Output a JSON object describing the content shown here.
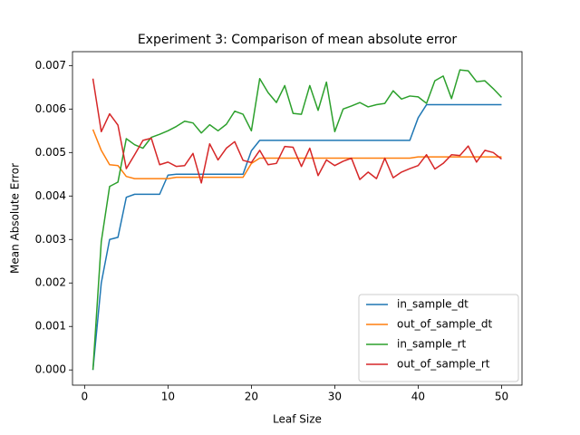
{
  "chart_data": {
    "type": "line",
    "title": "Experiment 3: Comparison of mean absolute error",
    "xlabel": "Leaf Size",
    "ylabel": "Mean Absolute Error",
    "x": [
      1,
      2,
      3,
      4,
      5,
      6,
      7,
      8,
      9,
      10,
      11,
      12,
      13,
      14,
      15,
      16,
      17,
      18,
      19,
      20,
      21,
      22,
      23,
      24,
      25,
      26,
      27,
      28,
      29,
      30,
      31,
      32,
      33,
      34,
      35,
      36,
      37,
      38,
      39,
      40,
      41,
      42,
      43,
      44,
      45,
      46,
      47,
      48,
      49,
      50
    ],
    "series": [
      {
        "name": "in_sample_dt",
        "color": "#1f77b4",
        "values": [
          0,
          0.002,
          0.003,
          0.00305,
          0.00397,
          0.00404,
          0.00404,
          0.00404,
          0.00404,
          0.00448,
          0.0045,
          0.0045,
          0.0045,
          0.0045,
          0.0045,
          0.0045,
          0.0045,
          0.0045,
          0.0045,
          0.00504,
          0.00528,
          0.00528,
          0.00528,
          0.00528,
          0.00528,
          0.00528,
          0.00528,
          0.00528,
          0.00528,
          0.00528,
          0.00528,
          0.00528,
          0.00528,
          0.00528,
          0.00528,
          0.00528,
          0.00528,
          0.00528,
          0.00528,
          0.0058,
          0.0061,
          0.0061,
          0.0061,
          0.0061,
          0.0061,
          0.0061,
          0.0061,
          0.0061,
          0.0061,
          0.0061
        ]
      },
      {
        "name": "out_of_sample_dt",
        "color": "#ff7f0e",
        "values": [
          0.00553,
          0.00505,
          0.00472,
          0.0047,
          0.00445,
          0.0044,
          0.0044,
          0.0044,
          0.0044,
          0.0044,
          0.00443,
          0.00443,
          0.00443,
          0.00443,
          0.00443,
          0.00443,
          0.00443,
          0.00443,
          0.00443,
          0.00475,
          0.00487,
          0.00487,
          0.00487,
          0.00487,
          0.00487,
          0.00487,
          0.00487,
          0.00487,
          0.00487,
          0.00487,
          0.00487,
          0.00487,
          0.00487,
          0.00487,
          0.00487,
          0.00487,
          0.00487,
          0.00487,
          0.00487,
          0.0049,
          0.0049,
          0.0049,
          0.0049,
          0.0049,
          0.0049,
          0.0049,
          0.0049,
          0.0049,
          0.0049,
          0.0049
        ]
      },
      {
        "name": "in_sample_rt",
        "color": "#2ca02c",
        "values": [
          0,
          0.00295,
          0.00422,
          0.00432,
          0.00532,
          0.00518,
          0.0051,
          0.00535,
          0.00542,
          0.0055,
          0.0056,
          0.00572,
          0.00568,
          0.00545,
          0.00564,
          0.0055,
          0.00565,
          0.00595,
          0.00588,
          0.0055,
          0.0067,
          0.00638,
          0.00615,
          0.00654,
          0.0059,
          0.00588,
          0.00654,
          0.00597,
          0.00662,
          0.00548,
          0.006,
          0.00607,
          0.00615,
          0.00605,
          0.0061,
          0.00613,
          0.00642,
          0.00623,
          0.0063,
          0.00628,
          0.00613,
          0.00665,
          0.00676,
          0.00624,
          0.0069,
          0.00688,
          0.00663,
          0.00665,
          0.00647,
          0.00627
        ]
      },
      {
        "name": "out_of_sample_rt",
        "color": "#d62728",
        "values": [
          0.0067,
          0.00548,
          0.00589,
          0.00563,
          0.00463,
          0.00495,
          0.00528,
          0.00533,
          0.00472,
          0.00478,
          0.00468,
          0.0047,
          0.00498,
          0.0043,
          0.0052,
          0.00483,
          0.0051,
          0.00525,
          0.00482,
          0.00477,
          0.00505,
          0.00472,
          0.00475,
          0.00514,
          0.00512,
          0.00468,
          0.0051,
          0.00447,
          0.00483,
          0.0047,
          0.0048,
          0.00487,
          0.00438,
          0.00455,
          0.0044,
          0.00487,
          0.00442,
          0.00455,
          0.00463,
          0.0047,
          0.00495,
          0.00462,
          0.00475,
          0.00495,
          0.00493,
          0.00515,
          0.00478,
          0.00505,
          0.005,
          0.00485
        ]
      }
    ],
    "xlim": [
      -1.45,
      52.45
    ],
    "ylim": [
      -0.00035,
      0.00732
    ],
    "xticks": [
      0,
      10,
      20,
      30,
      40,
      50
    ],
    "yticks": [
      {
        "value": 0,
        "label": "0.000"
      },
      {
        "value": 0.001,
        "label": "0.001"
      },
      {
        "value": 0.002,
        "label": "0.002"
      },
      {
        "value": 0.003,
        "label": "0.003"
      },
      {
        "value": 0.004,
        "label": "0.004"
      },
      {
        "value": 0.005,
        "label": "0.005"
      },
      {
        "value": 0.006,
        "label": "0.006"
      },
      {
        "value": 0.007,
        "label": "0.007"
      }
    ],
    "legend": "lower right"
  }
}
